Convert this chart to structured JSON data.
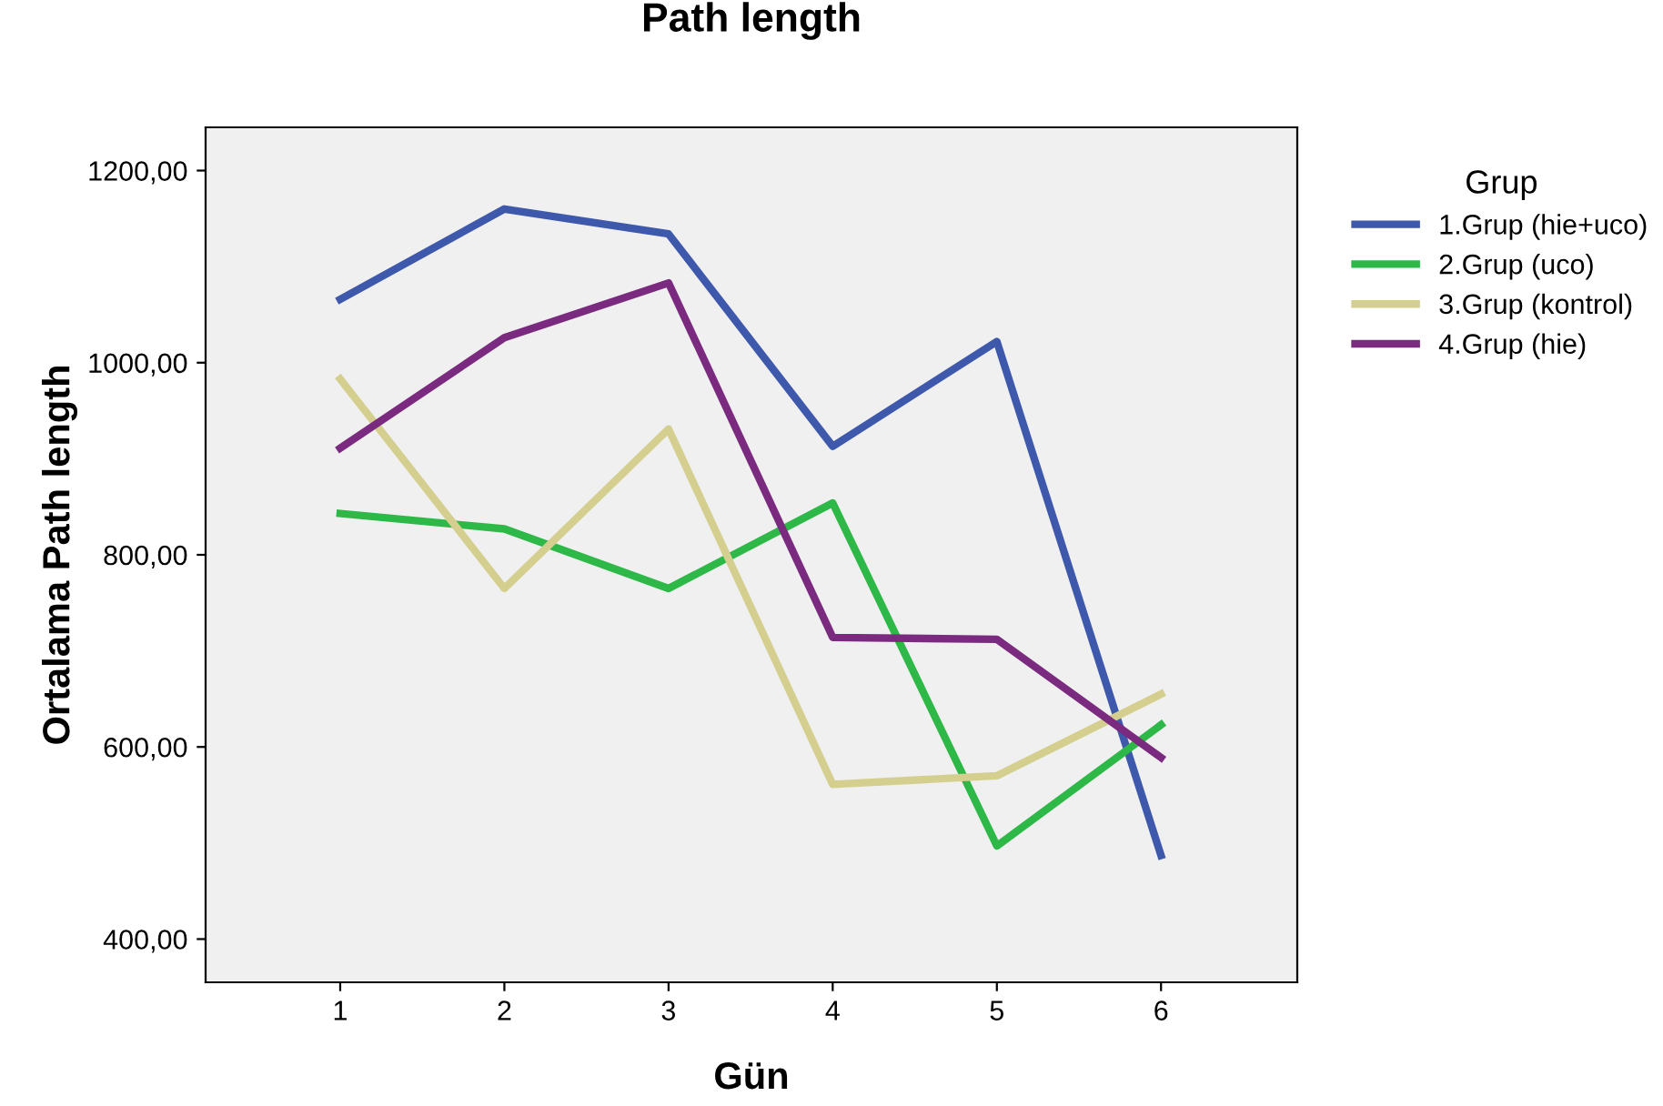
{
  "chart_data": {
    "type": "line",
    "title": "Path length",
    "xlabel": "Gün",
    "ylabel": "Ortalama Path length",
    "legend_title": "Grup",
    "legend": "right",
    "grid": false,
    "categories": [
      "1",
      "2",
      "3",
      "4",
      "5",
      "6"
    ],
    "ylim": [
      355,
      1245
    ],
    "yticks": [
      {
        "value": 400,
        "label": "400,00"
      },
      {
        "value": 600,
        "label": "600,00"
      },
      {
        "value": 800,
        "label": "800,00"
      },
      {
        "value": 1000,
        "label": "1000,00"
      },
      {
        "value": 1200,
        "label": "1200,00"
      }
    ],
    "series": [
      {
        "name": "1.Grup (hie+uco)",
        "color": "#3e58ac",
        "values": [
          1066,
          1160,
          1134,
          913,
          1022,
          487
        ]
      },
      {
        "name": "2.Grup (uco)",
        "color": "#2eb848",
        "values": [
          843,
          827,
          765,
          854,
          497,
          623
        ]
      },
      {
        "name": "3.Grup (kontrol)",
        "color": "#d4cf8f",
        "values": [
          983,
          765,
          931,
          561,
          570,
          655
        ]
      },
      {
        "name": "4.Grup (hie)",
        "color": "#7a2b7f",
        "values": [
          911,
          1026,
          1083,
          714,
          712,
          589
        ]
      }
    ]
  }
}
